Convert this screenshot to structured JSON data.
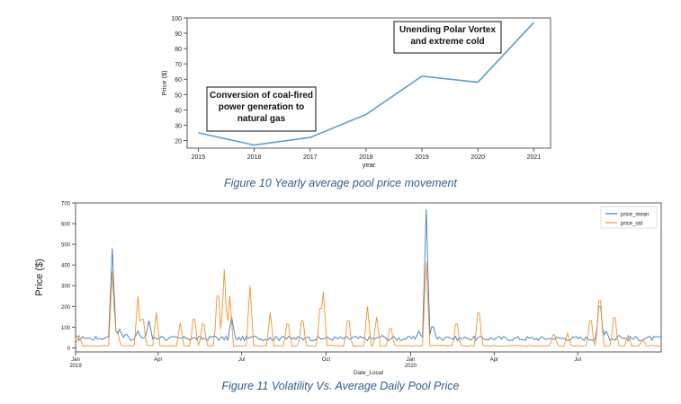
{
  "figures": {
    "yearly_caption": "Figure 10 Yearly average pool price movement",
    "daily_caption": "Figure 11 Volatility Vs. Average Daily Pool Price"
  },
  "chart_data": [
    {
      "type": "line",
      "title": "",
      "xlabel": "year",
      "ylabel": "Price ($)",
      "x": [
        2015,
        2016,
        2017,
        2018,
        2019,
        2020,
        2021
      ],
      "xticks": [
        "2015",
        "2016",
        "2017",
        "2018",
        "2019",
        "2020",
        "2021"
      ],
      "yticks": [
        20,
        30,
        40,
        50,
        60,
        70,
        80,
        90,
        100
      ],
      "ylim": [
        15,
        100
      ],
      "xlim": [
        2014.8,
        2021.3
      ],
      "series": [
        {
          "values": [
            25,
            17,
            22,
            37,
            62,
            58,
            97
          ],
          "color": "#5a9fd4"
        }
      ],
      "annotations": [
        {
          "text": "Conversion of coal-fired power generation to natural gas",
          "lines": [
            "Conversion of coal-fired",
            "power generation to",
            "natural gas"
          ]
        },
        {
          "text": "Unending Polar Vortex and extreme cold",
          "lines": [
            "Unending Polar Vortex",
            "and extreme cold"
          ]
        }
      ],
      "grid": false
    },
    {
      "type": "line",
      "title": "",
      "xlabel": "Date_Local",
      "ylabel": "Price ($)",
      "xlim": [
        "2019-01-01",
        "2020-09-30"
      ],
      "ylim": [
        -20,
        700
      ],
      "yticks": [
        0,
        100,
        200,
        300,
        400,
        500,
        600,
        700
      ],
      "xticks": [
        {
          "date": "2019-01-01",
          "label": "Jan",
          "sub": "2019"
        },
        {
          "date": "2019-04-01",
          "label": "Apr",
          "sub": ""
        },
        {
          "date": "2019-07-01",
          "label": "Jul",
          "sub": ""
        },
        {
          "date": "2019-10-01",
          "label": "Oct",
          "sub": ""
        },
        {
          "date": "2020-01-01",
          "label": "Jan",
          "sub": "2020"
        },
        {
          "date": "2020-04-01",
          "label": "Apr",
          "sub": ""
        },
        {
          "date": "2020-07-01",
          "label": "Jul",
          "sub": ""
        }
      ],
      "legend": "top-right",
      "grid": false,
      "series": [
        {
          "name": "price_mean",
          "color": "#3a7dbd",
          "baseline": 45,
          "points": [
            [
              "2019-01-01",
              60
            ],
            [
              "2019-01-10",
              45
            ],
            [
              "2019-01-25",
              40
            ],
            [
              "2019-02-05",
              55
            ],
            [
              "2019-02-10",
              480
            ],
            [
              "2019-02-12",
              120
            ],
            [
              "2019-02-18",
              90
            ],
            [
              "2019-02-25",
              70
            ],
            [
              "2019-03-10",
              80
            ],
            [
              "2019-03-22",
              130
            ],
            [
              "2019-04-05",
              55
            ],
            [
              "2019-05-01",
              45
            ],
            [
              "2019-06-01",
              60
            ],
            [
              "2019-06-20",
              150
            ],
            [
              "2019-07-15",
              60
            ],
            [
              "2019-08-15",
              55
            ],
            [
              "2019-09-10",
              50
            ],
            [
              "2019-10-01",
              45
            ],
            [
              "2019-11-01",
              55
            ],
            [
              "2019-12-01",
              60
            ],
            [
              "2020-01-10",
              80
            ],
            [
              "2020-01-18",
              670
            ],
            [
              "2020-01-25",
              120
            ],
            [
              "2020-02-10",
              55
            ],
            [
              "2020-03-01",
              45
            ],
            [
              "2020-04-01",
              35
            ],
            [
              "2020-05-01",
              30
            ],
            [
              "2020-06-01",
              35
            ],
            [
              "2020-07-01",
              40
            ],
            [
              "2020-07-25",
              250
            ],
            [
              "2020-08-01",
              80
            ],
            [
              "2020-08-15",
              60
            ],
            [
              "2020-09-30",
              35
            ]
          ]
        },
        {
          "name": "price_std",
          "color": "#f5922a",
          "baseline": 10,
          "points": [
            [
              "2019-01-01",
              20
            ],
            [
              "2019-01-05",
              60
            ],
            [
              "2019-02-10",
              370
            ],
            [
              "2019-02-15",
              100
            ],
            [
              "2019-03-10",
              250
            ],
            [
              "2019-03-15",
              180
            ],
            [
              "2019-03-30",
              170
            ],
            [
              "2019-04-25",
              120
            ],
            [
              "2019-05-10",
              180
            ],
            [
              "2019-05-20",
              150
            ],
            [
              "2019-06-05",
              330
            ],
            [
              "2019-06-12",
              380
            ],
            [
              "2019-06-18",
              250
            ],
            [
              "2019-07-10",
              300
            ],
            [
              "2019-08-01",
              170
            ],
            [
              "2019-08-20",
              150
            ],
            [
              "2019-09-05",
              170
            ],
            [
              "2019-09-25",
              250
            ],
            [
              "2019-09-28",
              270
            ],
            [
              "2019-10-25",
              170
            ],
            [
              "2019-11-15",
              200
            ],
            [
              "2019-11-25",
              150
            ],
            [
              "2019-12-10",
              120
            ],
            [
              "2020-01-18",
              415
            ],
            [
              "2020-02-20",
              150
            ],
            [
              "2020-03-15",
              220
            ],
            [
              "2020-06-05",
              80
            ],
            [
              "2020-06-20",
              70
            ],
            [
              "2020-07-15",
              170
            ],
            [
              "2020-07-25",
              300
            ],
            [
              "2020-08-10",
              190
            ],
            [
              "2020-08-25",
              60
            ],
            [
              "2020-09-10",
              40
            ]
          ]
        }
      ]
    }
  ]
}
